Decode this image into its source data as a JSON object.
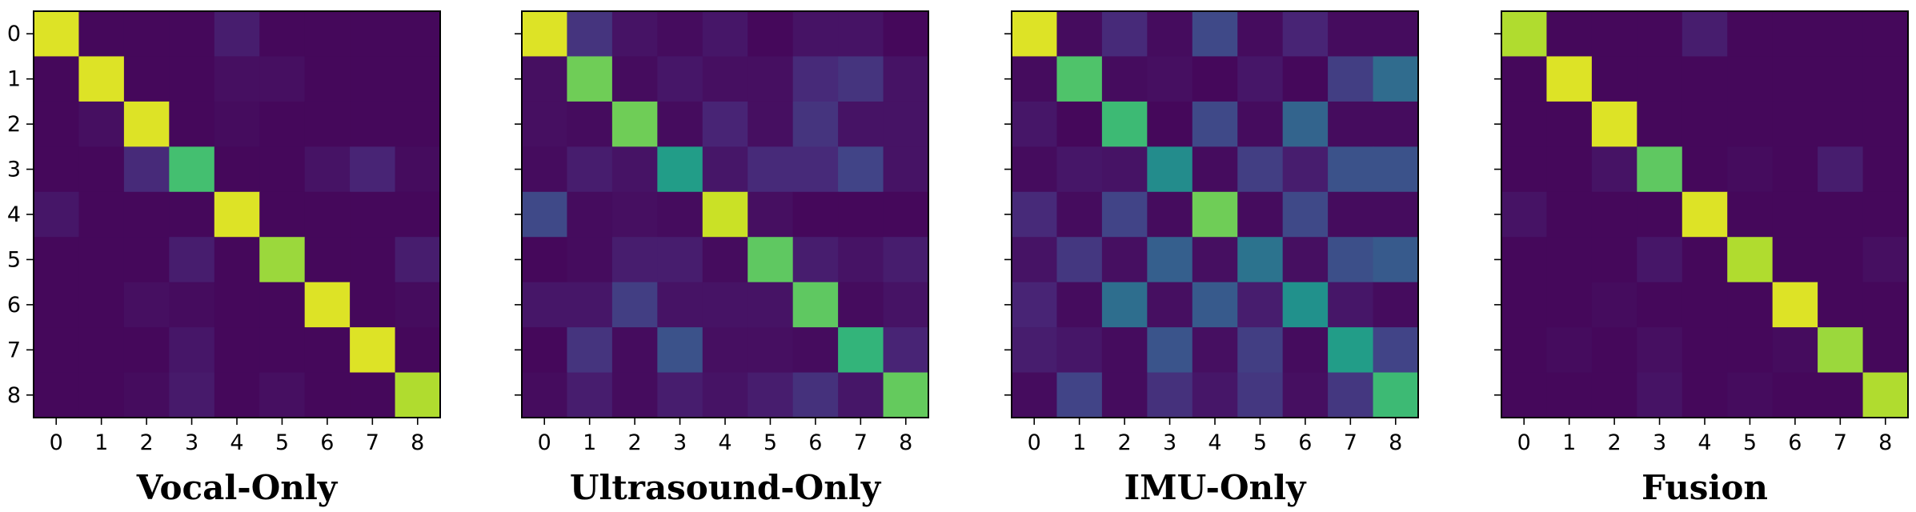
{
  "chart_data": [
    {
      "type": "heatmap",
      "title": "Vocal-Only",
      "x_ticks": [
        "0",
        "1",
        "2",
        "3",
        "4",
        "5",
        "6",
        "7",
        "8"
      ],
      "y_ticks": [
        "0",
        "1",
        "2",
        "3",
        "4",
        "5",
        "6",
        "7",
        "8"
      ],
      "colormap": "viridis",
      "vmin": 0,
      "vmax": 1,
      "show_y_tick_labels": true,
      "values": [
        [
          0.95,
          0.02,
          0.02,
          0.02,
          0.08,
          0.02,
          0.02,
          0.02,
          0.02
        ],
        [
          0.02,
          0.95,
          0.02,
          0.02,
          0.04,
          0.04,
          0.02,
          0.02,
          0.02
        ],
        [
          0.02,
          0.04,
          0.95,
          0.02,
          0.03,
          0.02,
          0.02,
          0.02,
          0.02
        ],
        [
          0.02,
          0.02,
          0.12,
          0.7,
          0.02,
          0.02,
          0.05,
          0.1,
          0.03
        ],
        [
          0.06,
          0.02,
          0.02,
          0.02,
          0.95,
          0.02,
          0.02,
          0.02,
          0.02
        ],
        [
          0.02,
          0.02,
          0.02,
          0.08,
          0.02,
          0.85,
          0.02,
          0.02,
          0.08
        ],
        [
          0.02,
          0.02,
          0.04,
          0.03,
          0.02,
          0.02,
          0.95,
          0.02,
          0.03
        ],
        [
          0.02,
          0.02,
          0.02,
          0.06,
          0.02,
          0.02,
          0.02,
          0.95,
          0.02
        ],
        [
          0.02,
          0.02,
          0.03,
          0.07,
          0.02,
          0.04,
          0.02,
          0.02,
          0.88
        ]
      ]
    },
    {
      "type": "heatmap",
      "title": "Ultrasound-Only",
      "x_ticks": [
        "0",
        "1",
        "2",
        "3",
        "4",
        "5",
        "6",
        "7",
        "8"
      ],
      "y_ticks": [
        "0",
        "1",
        "2",
        "3",
        "4",
        "5",
        "6",
        "7",
        "8"
      ],
      "colormap": "viridis",
      "vmin": 0,
      "vmax": 1,
      "show_y_tick_labels": false,
      "values": [
        [
          0.95,
          0.15,
          0.05,
          0.03,
          0.06,
          0.02,
          0.05,
          0.05,
          0.02
        ],
        [
          0.04,
          0.78,
          0.03,
          0.06,
          0.04,
          0.04,
          0.12,
          0.15,
          0.05
        ],
        [
          0.04,
          0.03,
          0.78,
          0.03,
          0.1,
          0.04,
          0.15,
          0.05,
          0.05
        ],
        [
          0.03,
          0.08,
          0.05,
          0.55,
          0.06,
          0.12,
          0.12,
          0.2,
          0.05
        ],
        [
          0.22,
          0.03,
          0.04,
          0.03,
          0.92,
          0.04,
          0.02,
          0.02,
          0.02
        ],
        [
          0.02,
          0.03,
          0.08,
          0.08,
          0.03,
          0.75,
          0.08,
          0.05,
          0.08
        ],
        [
          0.06,
          0.06,
          0.18,
          0.05,
          0.05,
          0.05,
          0.75,
          0.03,
          0.05
        ],
        [
          0.02,
          0.15,
          0.03,
          0.25,
          0.04,
          0.04,
          0.03,
          0.65,
          0.1
        ],
        [
          0.03,
          0.08,
          0.03,
          0.08,
          0.05,
          0.08,
          0.14,
          0.06,
          0.76
        ]
      ]
    },
    {
      "type": "heatmap",
      "title": "IMU-Only",
      "x_ticks": [
        "0",
        "1",
        "2",
        "3",
        "4",
        "5",
        "6",
        "7",
        "8"
      ],
      "y_ticks": [
        "0",
        "1",
        "2",
        "3",
        "4",
        "5",
        "6",
        "7",
        "8"
      ],
      "colormap": "viridis",
      "vmin": 0,
      "vmax": 1,
      "show_y_tick_labels": false,
      "values": [
        [
          0.95,
          0.03,
          0.12,
          0.03,
          0.22,
          0.03,
          0.1,
          0.03,
          0.03
        ],
        [
          0.03,
          0.72,
          0.03,
          0.04,
          0.02,
          0.06,
          0.02,
          0.18,
          0.35
        ],
        [
          0.06,
          0.02,
          0.68,
          0.02,
          0.22,
          0.03,
          0.32,
          0.03,
          0.03
        ],
        [
          0.03,
          0.06,
          0.05,
          0.48,
          0.03,
          0.18,
          0.08,
          0.25,
          0.25
        ],
        [
          0.12,
          0.03,
          0.2,
          0.03,
          0.78,
          0.03,
          0.22,
          0.03,
          0.03
        ],
        [
          0.05,
          0.16,
          0.04,
          0.3,
          0.04,
          0.38,
          0.04,
          0.24,
          0.28
        ],
        [
          0.1,
          0.03,
          0.36,
          0.04,
          0.28,
          0.08,
          0.5,
          0.06,
          0.03
        ],
        [
          0.08,
          0.06,
          0.03,
          0.26,
          0.04,
          0.18,
          0.03,
          0.55,
          0.2
        ],
        [
          0.03,
          0.2,
          0.03,
          0.14,
          0.06,
          0.16,
          0.04,
          0.16,
          0.68
        ]
      ]
    },
    {
      "type": "heatmap",
      "title": "Fusion",
      "x_ticks": [
        "0",
        "1",
        "2",
        "3",
        "4",
        "5",
        "6",
        "7",
        "8"
      ],
      "y_ticks": [
        "0",
        "1",
        "2",
        "3",
        "4",
        "5",
        "6",
        "7",
        "8"
      ],
      "colormap": "viridis",
      "vmin": 0,
      "vmax": 1,
      "show_y_tick_labels": false,
      "values": [
        [
          0.88,
          0.02,
          0.02,
          0.02,
          0.08,
          0.02,
          0.02,
          0.02,
          0.02
        ],
        [
          0.02,
          0.95,
          0.02,
          0.02,
          0.02,
          0.02,
          0.02,
          0.02,
          0.02
        ],
        [
          0.02,
          0.02,
          0.95,
          0.02,
          0.02,
          0.02,
          0.02,
          0.02,
          0.02
        ],
        [
          0.02,
          0.02,
          0.05,
          0.75,
          0.02,
          0.03,
          0.02,
          0.08,
          0.02
        ],
        [
          0.05,
          0.02,
          0.02,
          0.02,
          0.95,
          0.02,
          0.02,
          0.02,
          0.02
        ],
        [
          0.02,
          0.02,
          0.02,
          0.06,
          0.02,
          0.88,
          0.02,
          0.02,
          0.04
        ],
        [
          0.02,
          0.02,
          0.03,
          0.02,
          0.02,
          0.02,
          0.95,
          0.02,
          0.02
        ],
        [
          0.02,
          0.03,
          0.02,
          0.04,
          0.02,
          0.02,
          0.03,
          0.85,
          0.02
        ],
        [
          0.02,
          0.02,
          0.02,
          0.05,
          0.02,
          0.03,
          0.02,
          0.02,
          0.88
        ]
      ]
    }
  ]
}
